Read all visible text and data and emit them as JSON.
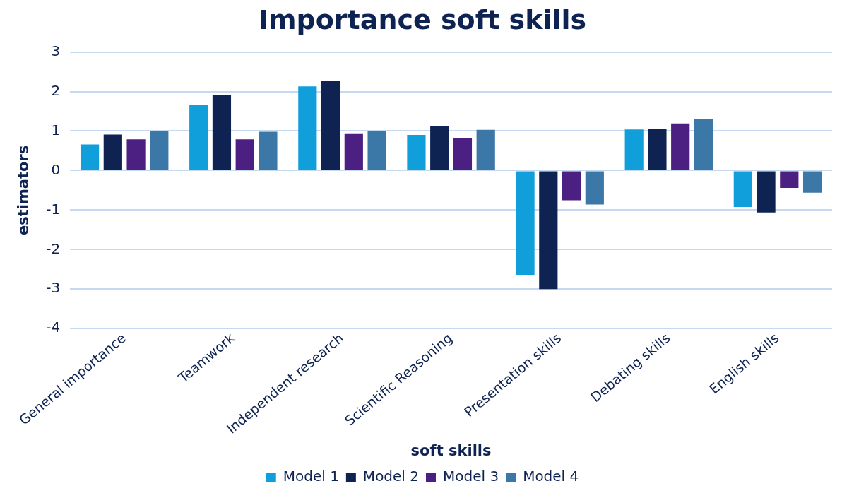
{
  "chart_data": {
    "type": "bar",
    "title": "Importance soft skills",
    "xlabel": "soft skills",
    "ylabel": "estimators",
    "categories": [
      "General importance",
      "Teamwork",
      "Independent research",
      "Scientific Reasoning",
      "Presentation skills",
      "Debating skills",
      "English skills"
    ],
    "series": [
      {
        "name": "Model 1",
        "color": "#119fdb",
        "values": [
          0.66,
          1.66,
          2.13,
          0.9,
          -2.64,
          1.04,
          -0.92
        ]
      },
      {
        "name": "Model 2",
        "color": "#0e2352",
        "values": [
          0.91,
          1.92,
          2.26,
          1.12,
          -3.0,
          1.06,
          -1.06
        ]
      },
      {
        "name": "Model 3",
        "color": "#4c2082",
        "values": [
          0.79,
          0.79,
          0.94,
          0.83,
          -0.75,
          1.19,
          -0.44
        ]
      },
      {
        "name": "Model 4",
        "color": "#3b78a8",
        "values": [
          0.99,
          0.98,
          0.99,
          1.03,
          -0.86,
          1.3,
          -0.56
        ]
      }
    ],
    "ylim": [
      -4,
      3
    ],
    "yticks": [
      -4,
      -3,
      -2,
      -1,
      0,
      1,
      2,
      3
    ],
    "grid": "y",
    "legend": "bottom"
  }
}
